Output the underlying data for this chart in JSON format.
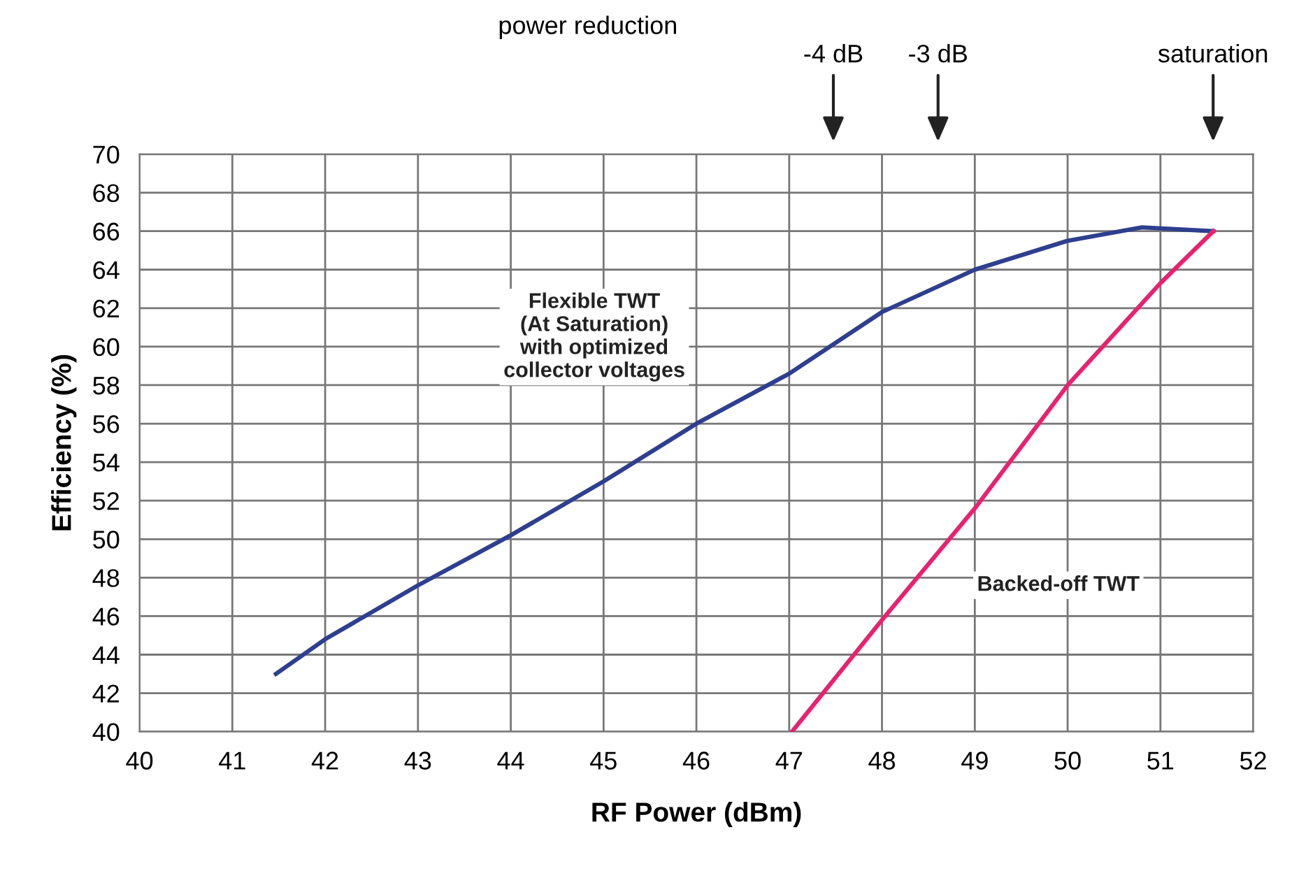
{
  "chart_data": {
    "type": "line",
    "xlabel": "RF Power (dBm)",
    "ylabel": "Efficiency (%)",
    "series": [
      {
        "name": "Flexible TWT\n(At Saturation)\nwith optimized\ncollector voltages",
        "color": "#2e3f8f",
        "x": [
          41.47,
          42,
          43,
          44,
          45,
          46,
          47,
          48,
          49,
          50,
          50.8,
          51.57
        ],
        "values": [
          43.0,
          44.8,
          47.6,
          50.2,
          53.0,
          56.0,
          58.6,
          61.8,
          64.0,
          65.5,
          66.2,
          66.0
        ]
      },
      {
        "name": "Backed-off TWT",
        "color": "#e8226e",
        "x": [
          47.03,
          48,
          49,
          50,
          51,
          51.57
        ],
        "values": [
          40,
          45.8,
          51.6,
          58.0,
          63.3,
          66.0
        ]
      }
    ],
    "xlim": [
      40,
      52
    ],
    "xticks": [
      40,
      41,
      42,
      43,
      44,
      45,
      46,
      47,
      48,
      49,
      50,
      51,
      52
    ],
    "ylim": [
      40,
      70
    ],
    "yticks": [
      40,
      42,
      44,
      46,
      48,
      50,
      52,
      54,
      56,
      58,
      60,
      62,
      64,
      66,
      68,
      70
    ],
    "grid": true,
    "legend": false,
    "marker": "none",
    "line_style": "solid",
    "annotations": [
      "power reduction",
      "-4 dB",
      "-3 dB",
      "saturation"
    ]
  }
}
